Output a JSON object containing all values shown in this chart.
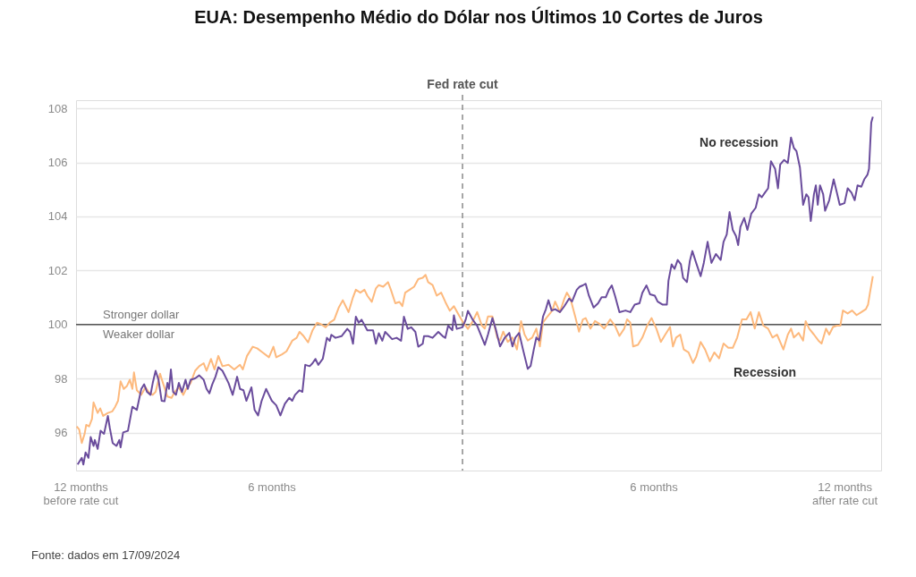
{
  "chart_data": {
    "type": "line",
    "title": "EUA: Desempenho Médio do Dólar nos Últimos 10 Cortes de Juros",
    "xlim": [
      -12.14,
      13.15
    ],
    "ylim": [
      94.6,
      108.3
    ],
    "xticks": [
      {
        "value": -12,
        "label": "12 months\nbefore rate cut"
      },
      {
        "value": -6,
        "label": "6 months"
      },
      {
        "value": 6,
        "label": "6 months"
      },
      {
        "value": 12,
        "label": "12 months\nafter rate cut"
      }
    ],
    "yticks": [
      96,
      98,
      100,
      102,
      104,
      106,
      108
    ],
    "grid": "y",
    "legend": false,
    "line_style": "solid",
    "marker": "none",
    "ref_lines": [
      {
        "axis": "x",
        "value": 0,
        "label": "Fed rate cut",
        "color": "#8a8a8a",
        "line_style": "dashed"
      },
      {
        "axis": "y",
        "value": 100,
        "label": null,
        "color": "#555555",
        "line_style": "solid"
      }
    ],
    "annotations": [
      "Stronger dollar",
      "Weaker dollar",
      "Fonte: dados em 17/09/2024"
    ],
    "series": [
      {
        "name": "Recession",
        "color": "#fdb97d",
        "x": [
          -12.12,
          -12.04,
          -11.96,
          -11.87,
          -11.82,
          -11.73,
          -11.64,
          -11.59,
          -11.46,
          -11.38,
          -11.29,
          -11.14,
          -11.0,
          -10.91,
          -10.82,
          -10.74,
          -10.64,
          -10.54,
          -10.45,
          -10.37,
          -10.32,
          -10.23,
          -10.09,
          -9.96,
          -9.86,
          -9.73,
          -9.64,
          -9.5,
          -9.41,
          -9.27,
          -9.14,
          -9.04,
          -8.91,
          -8.77,
          -8.68,
          -8.54,
          -8.4,
          -8.27,
          -8.13,
          -8.04,
          -7.9,
          -7.79,
          -7.67,
          -7.54,
          -7.35,
          -7.17,
          -6.99,
          -6.9,
          -6.77,
          -6.59,
          -6.45,
          -6.27,
          -6.08,
          -5.94,
          -5.85,
          -5.67,
          -5.53,
          -5.35,
          -5.21,
          -5.12,
          -4.99,
          -4.85,
          -4.71,
          -4.57,
          -4.44,
          -4.3,
          -4.17,
          -4.03,
          -3.89,
          -3.76,
          -3.67,
          -3.58,
          -3.44,
          -3.35,
          -3.21,
          -3.08,
          -2.99,
          -2.85,
          -2.72,
          -2.63,
          -2.49,
          -2.34,
          -2.25,
          -2.11,
          -1.98,
          -1.89,
          -1.8,
          -1.66,
          -1.52,
          -1.39,
          -1.25,
          -1.16,
          -1.08,
          -0.94,
          -0.81,
          -0.67,
          -0.54,
          -0.4,
          -0.27,
          -0.11,
          0.0,
          0.17,
          0.32,
          0.46,
          0.61,
          0.7,
          0.8,
          0.94,
          1.09,
          1.18,
          1.28,
          1.42,
          1.57,
          1.71,
          1.84,
          1.95,
          2.05,
          2.19,
          2.32,
          2.43,
          2.53,
          2.67,
          2.82,
          2.91,
          3.06,
          3.2,
          3.28,
          3.39,
          3.54,
          3.66,
          3.78,
          3.87,
          4.02,
          4.16,
          4.31,
          4.45,
          4.64,
          4.79,
          4.93,
          5.08,
          5.17,
          5.27,
          5.36,
          5.51,
          5.65,
          5.8,
          5.94,
          6.09,
          6.23,
          6.37,
          6.52,
          6.61,
          6.71,
          6.84,
          6.95,
          7.1,
          7.24,
          7.34,
          7.48,
          7.62,
          7.77,
          7.91,
          8.06,
          8.2,
          8.35,
          8.49,
          8.63,
          8.78,
          8.92,
          9.05,
          9.18,
          9.31,
          9.45,
          9.6,
          9.74,
          9.88,
          10.08,
          10.22,
          10.32,
          10.41,
          10.56,
          10.7,
          10.78,
          10.89,
          11.04,
          11.18,
          11.28,
          11.42,
          11.52,
          11.64,
          11.76,
          11.87,
          11.95,
          12.1,
          12.24,
          12.38,
          12.53,
          12.67,
          12.74,
          12.8,
          12.89
        ],
        "values": [
          96.23,
          96.12,
          95.62,
          95.96,
          96.29,
          96.23,
          96.51,
          97.12,
          96.73,
          96.9,
          96.62,
          96.73,
          96.79,
          96.96,
          97.18,
          97.9,
          97.62,
          97.73,
          97.96,
          97.62,
          98.23,
          97.57,
          97.4,
          97.68,
          97.51,
          97.4,
          97.51,
          98.18,
          97.84,
          97.34,
          97.29,
          97.51,
          97.68,
          97.4,
          97.62,
          97.84,
          98.29,
          98.46,
          98.57,
          98.29,
          98.73,
          98.34,
          98.84,
          98.46,
          98.51,
          98.34,
          98.51,
          98.34,
          98.84,
          99.18,
          99.12,
          98.96,
          98.79,
          99.18,
          98.79,
          98.9,
          99.01,
          99.4,
          99.51,
          99.73,
          99.57,
          99.34,
          99.79,
          100.07,
          100.01,
          99.9,
          100.07,
          100.18,
          100.62,
          100.9,
          100.68,
          100.46,
          101.01,
          101.29,
          101.18,
          101.29,
          101.07,
          100.84,
          101.34,
          101.46,
          101.4,
          101.57,
          101.29,
          100.79,
          100.84,
          100.68,
          101.18,
          101.29,
          101.4,
          101.68,
          101.73,
          101.84,
          101.57,
          101.46,
          101.07,
          101.18,
          100.84,
          100.51,
          100.68,
          100.34,
          100.12,
          99.84,
          100.12,
          100.46,
          99.96,
          99.85,
          100.3,
          100.3,
          99.52,
          99.41,
          99.74,
          99.36,
          99.52,
          99.08,
          100.13,
          99.63,
          99.41,
          99.52,
          99.85,
          99.19,
          100.08,
          100.3,
          100.52,
          100.85,
          100.46,
          100.96,
          101.18,
          100.96,
          100.3,
          99.74,
          100.19,
          100.24,
          99.85,
          100.13,
          100.02,
          99.85,
          100.19,
          99.96,
          99.58,
          99.85,
          100.19,
          100.08,
          99.19,
          99.25,
          99.52,
          99.96,
          100.24,
          99.85,
          99.36,
          99.63,
          99.91,
          99.19,
          99.52,
          99.63,
          99.08,
          98.97,
          98.58,
          98.8,
          99.36,
          99.08,
          98.64,
          98.97,
          98.75,
          99.3,
          99.14,
          99.14,
          99.52,
          100.19,
          100.19,
          100.46,
          99.85,
          100.46,
          99.96,
          99.85,
          99.52,
          99.63,
          99.08,
          99.63,
          99.85,
          99.52,
          99.69,
          99.41,
          100.13,
          99.85,
          99.63,
          99.41,
          99.3,
          99.85,
          99.63,
          99.91,
          99.96,
          99.96,
          100.52,
          100.41,
          100.52,
          100.35,
          100.46,
          100.57,
          100.74,
          101.18,
          101.79
        ]
      },
      {
        "name": "No recession",
        "color": "#6a4c9c",
        "x": [
          -12.09,
          -11.96,
          -11.91,
          -11.84,
          -11.75,
          -11.68,
          -11.59,
          -11.55,
          -11.46,
          -11.37,
          -11.26,
          -11.14,
          -11.08,
          -10.99,
          -10.87,
          -10.78,
          -10.74,
          -10.66,
          -10.51,
          -10.37,
          -10.23,
          -10.09,
          -10.0,
          -9.91,
          -9.8,
          -9.73,
          -9.64,
          -9.55,
          -9.45,
          -9.36,
          -9.27,
          -9.22,
          -9.16,
          -9.09,
          -9.0,
          -8.91,
          -8.81,
          -8.7,
          -8.63,
          -8.54,
          -8.4,
          -8.27,
          -8.13,
          -8.04,
          -7.95,
          -7.86,
          -7.76,
          -7.67,
          -7.54,
          -7.35,
          -7.22,
          -7.08,
          -6.99,
          -6.88,
          -6.79,
          -6.63,
          -6.53,
          -6.42,
          -6.31,
          -6.17,
          -6.08,
          -5.99,
          -5.85,
          -5.72,
          -5.58,
          -5.44,
          -5.35,
          -5.26,
          -5.12,
          -5.03,
          -4.94,
          -4.8,
          -4.71,
          -4.62,
          -4.53,
          -4.39,
          -4.26,
          -4.17,
          -4.12,
          -3.99,
          -3.8,
          -3.62,
          -3.53,
          -3.44,
          -3.35,
          -3.26,
          -3.17,
          -2.99,
          -2.81,
          -2.72,
          -2.63,
          -2.52,
          -2.43,
          -2.34,
          -2.21,
          -2.07,
          -1.93,
          -1.84,
          -1.72,
          -1.61,
          -1.48,
          -1.39,
          -1.25,
          -1.21,
          -1.08,
          -0.94,
          -0.76,
          -0.62,
          -0.54,
          -0.45,
          -0.32,
          -0.27,
          -0.18,
          0.0,
          0.1,
          0.17,
          0.32,
          0.46,
          0.61,
          0.7,
          0.8,
          0.94,
          1.04,
          1.18,
          1.33,
          1.47,
          1.57,
          1.66,
          1.78,
          1.9,
          2.05,
          2.14,
          2.24,
          2.32,
          2.41,
          2.53,
          2.62,
          2.7,
          2.8,
          2.91,
          3.06,
          3.2,
          3.35,
          3.44,
          3.59,
          3.68,
          3.78,
          3.87,
          3.97,
          4.12,
          4.26,
          4.37,
          4.5,
          4.6,
          4.69,
          4.79,
          4.93,
          5.12,
          5.27,
          5.41,
          5.56,
          5.65,
          5.78,
          5.89,
          6.04,
          6.13,
          6.28,
          6.42,
          6.47,
          6.57,
          6.66,
          6.76,
          6.86,
          6.93,
          7.05,
          7.14,
          7.22,
          7.34,
          7.48,
          7.58,
          7.7,
          7.82,
          7.96,
          8.11,
          8.2,
          8.3,
          8.39,
          8.49,
          8.59,
          8.66,
          8.73,
          8.85,
          8.95,
          9.07,
          9.21,
          9.31,
          9.4,
          9.5,
          9.6,
          9.69,
          9.82,
          9.91,
          9.98,
          10.1,
          10.22,
          10.32,
          10.41,
          10.49,
          10.6,
          10.7,
          10.8,
          10.87,
          10.94,
          11.04,
          11.1,
          11.16,
          11.23,
          11.33,
          11.39,
          11.52,
          11.66,
          11.76,
          11.85,
          12.0,
          12.1,
          12.22,
          12.32,
          12.41,
          12.53,
          12.62,
          12.72,
          12.77,
          12.84,
          12.89
        ],
        "values": [
          94.82,
          95.07,
          94.82,
          95.27,
          95.07,
          95.84,
          95.51,
          95.73,
          95.4,
          96.07,
          95.96,
          96.62,
          96.18,
          95.62,
          95.51,
          95.73,
          95.46,
          96.01,
          96.07,
          96.96,
          96.84,
          97.62,
          97.79,
          97.51,
          97.4,
          97.84,
          98.29,
          97.96,
          97.18,
          97.16,
          97.84,
          97.62,
          98.34,
          97.51,
          97.4,
          97.84,
          97.51,
          97.96,
          97.62,
          97.96,
          98.01,
          98.12,
          97.96,
          97.62,
          97.46,
          97.79,
          98.07,
          98.42,
          98.29,
          97.84,
          97.4,
          98.07,
          97.62,
          97.57,
          97.18,
          97.68,
          96.84,
          96.64,
          97.18,
          97.62,
          97.4,
          97.18,
          97.01,
          96.64,
          97.07,
          97.29,
          97.18,
          97.4,
          97.57,
          97.51,
          98.51,
          98.46,
          98.57,
          98.73,
          98.51,
          98.73,
          99.51,
          99.4,
          99.62,
          99.51,
          99.57,
          99.84,
          99.73,
          99.29,
          100.29,
          100.07,
          100.18,
          99.79,
          99.79,
          99.29,
          99.68,
          99.4,
          99.73,
          99.62,
          99.46,
          99.51,
          99.4,
          100.29,
          99.84,
          99.9,
          99.73,
          99.18,
          99.29,
          99.57,
          99.57,
          99.51,
          99.73,
          99.57,
          99.51,
          99.96,
          99.79,
          100.34,
          99.84,
          99.9,
          100.18,
          100.51,
          100.18,
          99.96,
          99.52,
          99.25,
          99.63,
          100.24,
          99.85,
          99.19,
          99.52,
          99.69,
          99.19,
          99.52,
          99.69,
          99.08,
          98.36,
          98.47,
          99.08,
          99.52,
          99.41,
          100.3,
          100.57,
          100.9,
          100.52,
          100.57,
          100.46,
          100.68,
          100.96,
          100.85,
          101.29,
          101.4,
          101.45,
          101.51,
          101.07,
          100.63,
          100.79,
          101.01,
          101.01,
          101.29,
          101.45,
          101.07,
          100.46,
          100.52,
          100.46,
          100.74,
          100.79,
          101.18,
          101.45,
          101.12,
          101.07,
          100.85,
          100.74,
          100.74,
          101.62,
          102.23,
          102.06,
          102.39,
          102.23,
          101.73,
          101.57,
          102.34,
          102.72,
          102.28,
          101.79,
          102.28,
          103.06,
          102.28,
          102.61,
          102.39,
          103.06,
          103.33,
          104.16,
          103.5,
          103.28,
          102.94,
          103.61,
          103.94,
          103.5,
          104.1,
          104.32,
          104.82,
          104.71,
          104.88,
          105.04,
          106.04,
          105.76,
          105.04,
          105.92,
          106.09,
          105.98,
          106.92,
          106.53,
          106.42,
          105.81,
          104.43,
          104.82,
          104.71,
          103.83,
          104.82,
          105.15,
          104.43,
          105.15,
          104.82,
          104.21,
          104.6,
          105.37,
          104.88,
          104.43,
          104.49,
          105.04,
          104.88,
          104.6,
          105.15,
          105.1,
          105.37,
          105.54,
          105.76,
          107.47,
          107.69
        ]
      }
    ]
  }
}
